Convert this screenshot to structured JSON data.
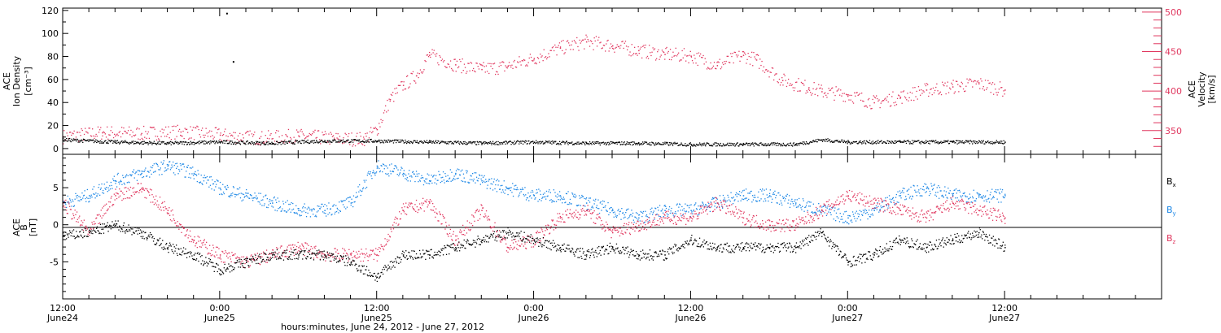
{
  "chart_data": [
    {
      "type": "scatter",
      "panel": "top",
      "ylabel_lines": [
        "ACE",
        "Ion Density",
        "[cm⁻³]"
      ],
      "ylim": [
        -5,
        122
      ],
      "yticks": [
        0,
        20,
        40,
        60,
        80,
        100,
        120
      ],
      "y2label_lines": [
        "ACE",
        "Velocity",
        "[km/s]"
      ],
      "y2lim": [
        320,
        505
      ],
      "y2ticks": [
        350,
        400,
        450,
        500
      ],
      "y2_tick_color": "#e0365e",
      "series": [
        {
          "axis": "left",
          "color": "#000000",
          "points": [
            [
              0,
              8
            ],
            [
              4,
              6
            ],
            [
              8,
              5
            ],
            [
              12,
              6
            ],
            [
              16,
              5
            ],
            [
              20,
              7
            ],
            [
              24,
              7
            ],
            [
              28,
              6
            ],
            [
              32,
              5
            ],
            [
              36,
              6
            ],
            [
              40,
              5
            ],
            [
              44,
              5
            ],
            [
              48,
              4
            ],
            [
              52,
              4
            ],
            [
              56,
              4
            ],
            [
              58,
              8
            ],
            [
              60,
              6
            ],
            [
              64,
              6
            ],
            [
              68,
              6
            ],
            [
              72,
              6
            ]
          ],
          "outliers": [
            [
              12.5,
              118
            ],
            [
              13,
              76
            ]
          ]
        },
        {
          "axis": "right",
          "color": "#e0365e",
          "points": [
            [
              0,
              343
            ],
            [
              3,
              348
            ],
            [
              6,
              347
            ],
            [
              9,
              349
            ],
            [
              12,
              345
            ],
            [
              15,
              341
            ],
            [
              18,
              344
            ],
            [
              21,
              340
            ],
            [
              23,
              340
            ],
            [
              24,
              352
            ],
            [
              25,
              390
            ],
            [
              26,
              408
            ],
            [
              27,
              420
            ],
            [
              28,
              446
            ],
            [
              30,
              434
            ],
            [
              32,
              428
            ],
            [
              34,
              432
            ],
            [
              36,
              442
            ],
            [
              38,
              455
            ],
            [
              40,
              463
            ],
            [
              42,
              458
            ],
            [
              44,
              452
            ],
            [
              46,
              447
            ],
            [
              48,
              445
            ],
            [
              50,
              433
            ],
            [
              52,
              446
            ],
            [
              53,
              440
            ],
            [
              55,
              414
            ],
            [
              57,
              405
            ],
            [
              58,
              400
            ],
            [
              60,
              396
            ],
            [
              62,
              386
            ],
            [
              64,
              393
            ],
            [
              66,
              402
            ],
            [
              68,
              406
            ],
            [
              70,
              410
            ],
            [
              72,
              402
            ]
          ]
        }
      ]
    },
    {
      "type": "scatter",
      "panel": "bottom",
      "ylabel_lines": [
        "ACE",
        "B",
        "[nT]"
      ],
      "ylim": [
        -10,
        9.5
      ],
      "yticks": [
        -5,
        0,
        5
      ],
      "zero_line": true,
      "legend": "right",
      "series": [
        {
          "name": "B",
          "subscript": "x",
          "color": "#000000",
          "points": [
            [
              0,
              -1.5
            ],
            [
              2,
              -1
            ],
            [
              4,
              0
            ],
            [
              6,
              -1
            ],
            [
              8,
              -3
            ],
            [
              10,
              -4
            ],
            [
              12,
              -6
            ],
            [
              14,
              -5
            ],
            [
              16,
              -4
            ],
            [
              18,
              -4
            ],
            [
              20,
              -4
            ],
            [
              22,
              -5
            ],
            [
              24,
              -7
            ],
            [
              26,
              -4
            ],
            [
              28,
              -4
            ],
            [
              30,
              -3
            ],
            [
              32,
              -2
            ],
            [
              34,
              -1
            ],
            [
              36,
              -2
            ],
            [
              38,
              -3
            ],
            [
              40,
              -4
            ],
            [
              42,
              -3
            ],
            [
              44,
              -4
            ],
            [
              46,
              -4
            ],
            [
              48,
              -2
            ],
            [
              50,
              -3
            ],
            [
              52,
              -3
            ],
            [
              54,
              -3
            ],
            [
              56,
              -3
            ],
            [
              58,
              -1
            ],
            [
              60,
              -5
            ],
            [
              62,
              -4
            ],
            [
              64,
              -2
            ],
            [
              66,
              -3
            ],
            [
              68,
              -2
            ],
            [
              70,
              -1
            ],
            [
              72,
              -3
            ]
          ]
        },
        {
          "name": "B",
          "subscript": "y",
          "color": "#1c87e6",
          "points": [
            [
              0,
              3
            ],
            [
              2,
              4
            ],
            [
              4,
              6
            ],
            [
              6,
              7
            ],
            [
              8,
              8
            ],
            [
              10,
              7
            ],
            [
              12,
              5
            ],
            [
              14,
              4
            ],
            [
              16,
              3
            ],
            [
              18,
              2
            ],
            [
              20,
              2
            ],
            [
              22,
              3
            ],
            [
              24,
              8
            ],
            [
              26,
              7
            ],
            [
              28,
              6
            ],
            [
              30,
              7
            ],
            [
              32,
              6
            ],
            [
              34,
              5
            ],
            [
              36,
              4
            ],
            [
              38,
              4
            ],
            [
              40,
              3
            ],
            [
              42,
              2
            ],
            [
              44,
              1
            ],
            [
              46,
              2
            ],
            [
              48,
              2
            ],
            [
              50,
              3
            ],
            [
              52,
              4
            ],
            [
              54,
              4
            ],
            [
              56,
              3
            ],
            [
              58,
              2
            ],
            [
              60,
              1
            ],
            [
              62,
              2
            ],
            [
              64,
              4
            ],
            [
              66,
              5
            ],
            [
              68,
              4
            ],
            [
              70,
              4
            ],
            [
              72,
              4
            ]
          ]
        },
        {
          "name": "B",
          "subscript": "z",
          "color": "#e0365e",
          "points": [
            [
              0,
              3
            ],
            [
              2,
              -1
            ],
            [
              4,
              4
            ],
            [
              6,
              5
            ],
            [
              8,
              2
            ],
            [
              10,
              -2
            ],
            [
              12,
              -4
            ],
            [
              14,
              -5
            ],
            [
              16,
              -4
            ],
            [
              18,
              -3
            ],
            [
              20,
              -4
            ],
            [
              22,
              -4
            ],
            [
              24,
              -4
            ],
            [
              26,
              2
            ],
            [
              28,
              3
            ],
            [
              30,
              -2
            ],
            [
              32,
              2
            ],
            [
              34,
              -3
            ],
            [
              36,
              -2
            ],
            [
              38,
              1
            ],
            [
              40,
              2
            ],
            [
              42,
              -1
            ],
            [
              44,
              0
            ],
            [
              46,
              1
            ],
            [
              48,
              1
            ],
            [
              50,
              3
            ],
            [
              52,
              1
            ],
            [
              54,
              0
            ],
            [
              56,
              0
            ],
            [
              58,
              2
            ],
            [
              60,
              4
            ],
            [
              62,
              3
            ],
            [
              64,
              2
            ],
            [
              66,
              1
            ],
            [
              68,
              3
            ],
            [
              70,
              2
            ],
            [
              72,
              1
            ]
          ]
        }
      ]
    }
  ],
  "x_axis": {
    "range_hours": [
      0,
      84
    ],
    "tick_every_hours": 12,
    "tick_labels": [
      {
        "time": "12:00",
        "day": "June24"
      },
      {
        "time": "0:00",
        "day": "June25"
      },
      {
        "time": "12:00",
        "day": "June25"
      },
      {
        "time": "0:00",
        "day": "June26"
      },
      {
        "time": "12:00",
        "day": "June26"
      },
      {
        "time": "0:00",
        "day": "June27"
      },
      {
        "time": "12:00",
        "day": "June27"
      }
    ],
    "title": "hours:minutes, June 24, 2012 - June 27, 2012"
  }
}
